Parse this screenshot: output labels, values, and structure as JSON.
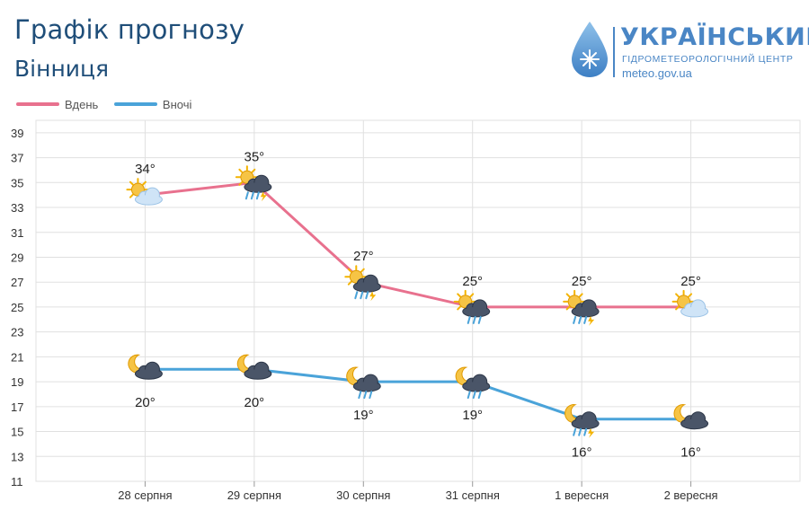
{
  "header": {
    "title": "Графік прогнозу",
    "city": "Вінниця"
  },
  "logo": {
    "name": "УКРАЇНСЬКИЙ",
    "center": "ГІДРОМЕТЕОРОЛОГІЧНИЙ ЦЕНТР",
    "url": "meteo.gov.ua"
  },
  "colors": {
    "day": "#e8718e",
    "night": "#4aa3d9",
    "grid": "#e0e0e0",
    "axis_text": "#333333"
  },
  "chart_data": {
    "type": "line",
    "title": "Графік прогнозу",
    "subtitle": "Вінниця",
    "categories": [
      "28 серпня",
      "29 серпня",
      "30 серпня",
      "31 серпня",
      "1 вересня",
      "2 вересня"
    ],
    "series": [
      {
        "name": "Вдень",
        "values": [
          34,
          35,
          27,
          25,
          25,
          25
        ],
        "labels": [
          "34°",
          "35°",
          "27°",
          "25°",
          "25°",
          "25°"
        ],
        "icons": [
          "sun-cloud-icon",
          "sun-thunderstorm-icon",
          "sun-thunderstorm-icon",
          "sun-rain-icon",
          "sun-thunderstorm-icon",
          "sun-cloud-icon"
        ]
      },
      {
        "name": "Вночі",
        "values": [
          20,
          20,
          19,
          19,
          16,
          16
        ],
        "labels": [
          "20°",
          "20°",
          "19°",
          "19°",
          "16°",
          "16°"
        ],
        "icons": [
          "moon-cloud-icon",
          "moon-cloud-icon",
          "moon-rain-icon",
          "moon-rain-icon",
          "moon-thunderstorm-icon",
          "moon-cloud-icon"
        ]
      }
    ],
    "y_ticks": [
      11,
      13,
      15,
      17,
      19,
      21,
      23,
      25,
      27,
      29,
      31,
      33,
      35,
      37,
      39
    ],
    "ylim": [
      11,
      40
    ],
    "grid": true,
    "legend": "top-left"
  }
}
